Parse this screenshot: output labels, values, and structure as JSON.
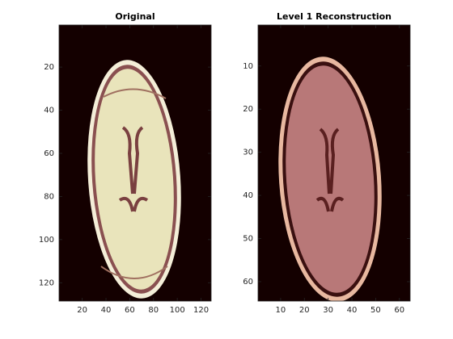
{
  "chart_data": [
    {
      "type": "image",
      "title": "Original",
      "xlim": [
        0.5,
        128.5
      ],
      "ylim": [
        0.5,
        128.5
      ],
      "y_reversed": true,
      "xticks": [
        20,
        40,
        60,
        80,
        100,
        120
      ],
      "yticks": [
        20,
        40,
        60,
        80,
        100,
        120
      ]
    },
    {
      "type": "image",
      "title": "Level 1 Reconstruction",
      "xlim": [
        0.5,
        64.5
      ],
      "ylim": [
        0.5,
        64.5
      ],
      "y_reversed": true,
      "xticks": [
        10,
        20,
        30,
        40,
        50,
        60
      ],
      "yticks": [
        10,
        20,
        30,
        40,
        50,
        60
      ]
    }
  ]
}
